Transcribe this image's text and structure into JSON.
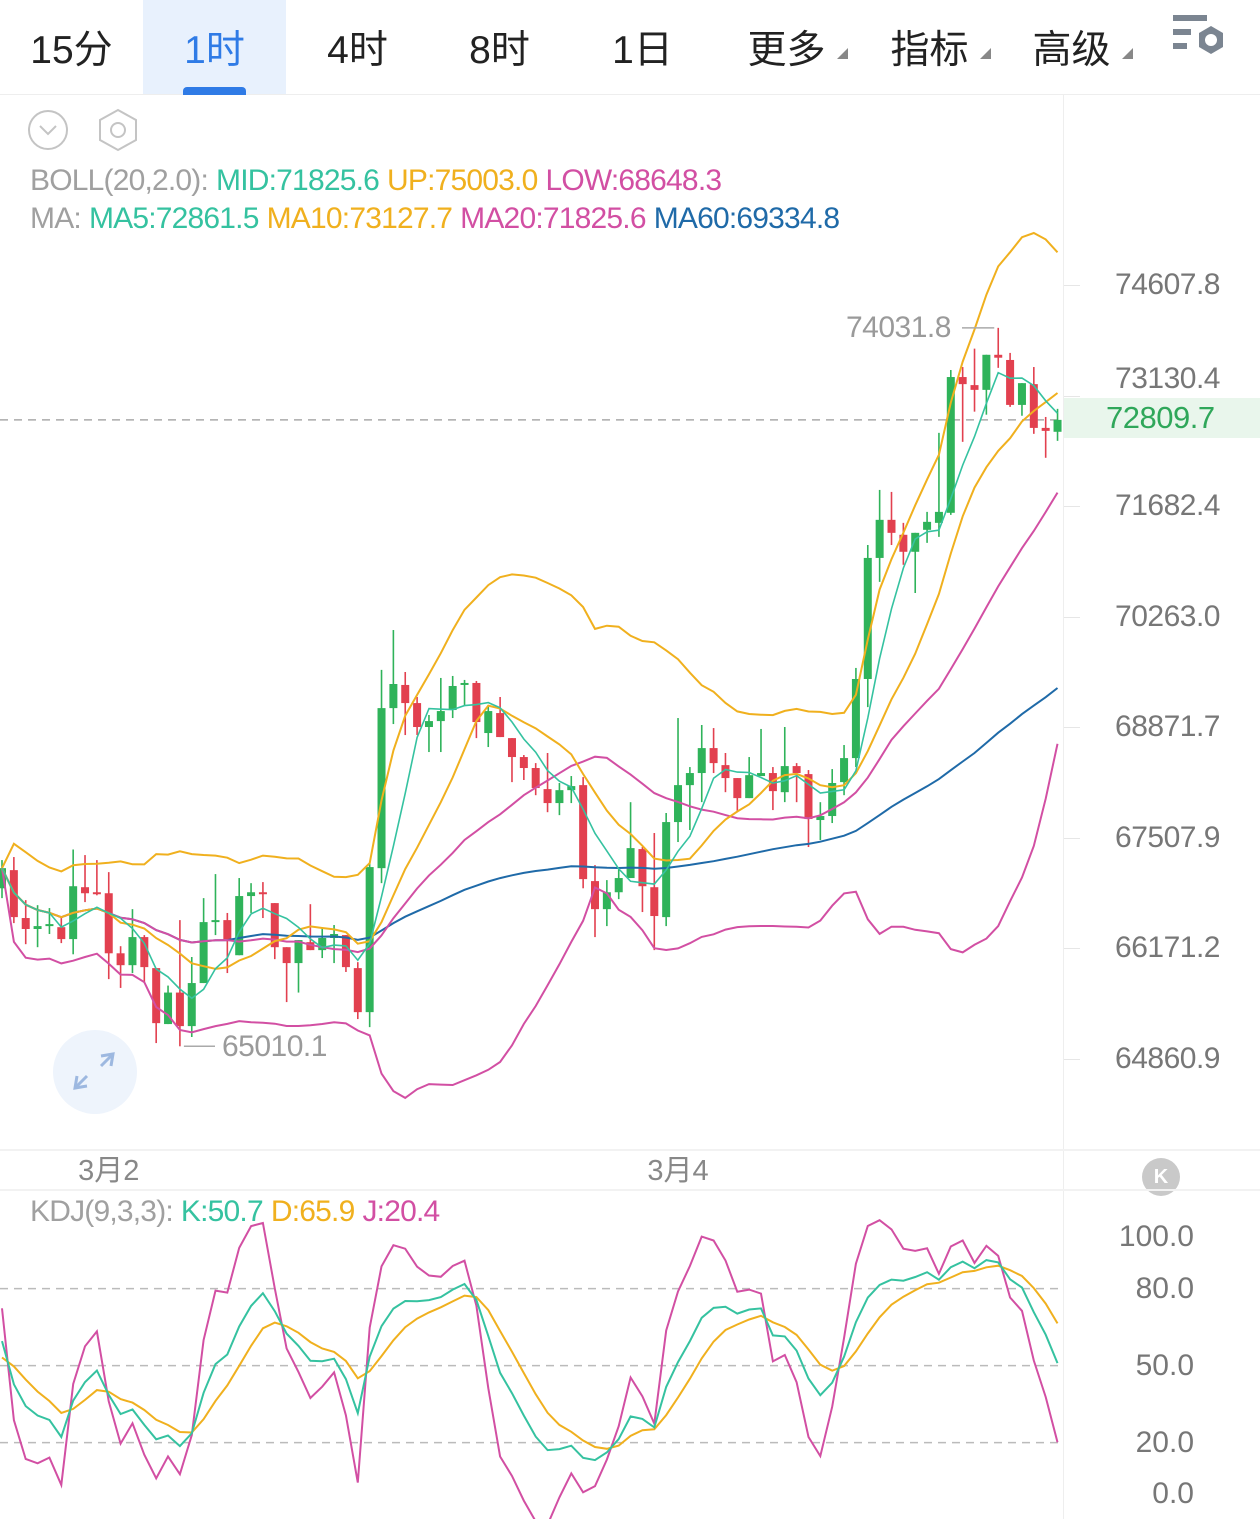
{
  "tabs": [
    {
      "label": "15分",
      "active": false,
      "dropdown": false
    },
    {
      "label": "1时",
      "active": true,
      "dropdown": false
    },
    {
      "label": "4时",
      "active": false,
      "dropdown": false
    },
    {
      "label": "8时",
      "active": false,
      "dropdown": false
    },
    {
      "label": "1日",
      "active": false,
      "dropdown": false
    },
    {
      "label": "更多",
      "active": false,
      "dropdown": true
    },
    {
      "label": "指标",
      "active": false,
      "dropdown": true
    },
    {
      "label": "高级",
      "active": false,
      "dropdown": true
    }
  ],
  "toolbar_icons": [
    "chart-settings-icon",
    "collapse-chevron-icon",
    "hexagon-settings-icon",
    "expand-arrows-icon"
  ],
  "legend": {
    "boll": {
      "label": "BOLL(20,2.0):",
      "mid": "MID:71825.6",
      "up": "UP:75003.0",
      "low": "LOW:68648.3"
    },
    "ma": {
      "label": "MA:",
      "ma5": "MA5:72861.5",
      "ma10": "MA10:73127.7",
      "ma20": "MA20:71825.6",
      "ma60": "MA60:69334.8"
    }
  },
  "kdj_legend": {
    "label": "KDJ(9,3,3):",
    "k": "K:50.7",
    "d": "D:65.9",
    "j": "J:20.4"
  },
  "k_button": "K",
  "current_price": "72809.7",
  "colors": {
    "up": "#2fb35a",
    "down": "#e2404f",
    "accent": "#2f7be6",
    "ma5": "#35c2a0",
    "ma10": "#f0b01e",
    "ma20": "#d24fa3",
    "ma60": "#1f6aa8",
    "boll_up": "#f0b01e",
    "boll_low": "#d24fa3",
    "k": "#35c2a0",
    "d": "#f0b01e",
    "j": "#d24fa3"
  },
  "chart_data": [
    {
      "type": "candlestick",
      "interval": "1时",
      "y_scale": "log",
      "y_ticks": [
        "74607.8",
        "73130.4",
        "71682.4",
        "70263.0",
        "68871.7",
        "67507.9",
        "66171.2",
        "64860.9"
      ],
      "x_ticks": [
        {
          "label": "3月2",
          "index": 9
        },
        {
          "label": "3月4",
          "index": 57
        }
      ],
      "high_marker": "74031.8",
      "low_marker": "65010.1",
      "current_price": 72809.7,
      "indicators": {
        "ma": [
          5,
          10,
          20,
          60
        ],
        "boll": [
          20,
          2.0
        ]
      },
      "candles_ohlc": [
        [
          66895,
          67237,
          66776,
          67139
        ],
        [
          67115,
          67274,
          66475,
          66547
        ],
        [
          66536,
          66752,
          66222,
          66404
        ],
        [
          66404,
          66691,
          66186,
          66439
        ],
        [
          66439,
          66656,
          66344,
          66463
        ],
        [
          66426,
          66536,
          66235,
          66283
        ],
        [
          66283,
          67366,
          66101,
          66920
        ],
        [
          66908,
          67298,
          66728,
          66835
        ],
        [
          66847,
          67237,
          66810,
          66823
        ],
        [
          66835,
          67091,
          65805,
          66113
        ],
        [
          66113,
          66198,
          65700,
          65971
        ],
        [
          65971,
          66643,
          65877,
          66307
        ],
        [
          66307,
          66331,
          65772,
          65948
        ],
        [
          65936,
          65936,
          65048,
          65283
        ],
        [
          65272,
          65728,
          65272,
          65645
        ],
        [
          65645,
          66511,
          65010.1,
          65248
        ],
        [
          65248,
          66068,
          65120,
          65758
        ],
        [
          65758,
          66776,
          65758,
          66487
        ],
        [
          66487,
          67067,
          66331,
          66511
        ],
        [
          66511,
          66597,
          65877,
          66283
        ],
        [
          66090,
          67019,
          66090,
          66801
        ],
        [
          66801,
          66957,
          66597,
          66847
        ],
        [
          66847,
          66970,
          66536,
          66823
        ],
        [
          66716,
          66716,
          66043,
          66186
        ],
        [
          66186,
          66186,
          65532,
          65996
        ],
        [
          65996,
          66271,
          65645,
          66271
        ],
        [
          66246,
          66703,
          66151,
          66151
        ],
        [
          66151,
          66416,
          66056,
          66296
        ],
        [
          66296,
          66452,
          65996,
          66344
        ],
        [
          66331,
          66331,
          65890,
          65948
        ],
        [
          65936,
          66007,
          65331,
          65413
        ],
        [
          65413,
          67200,
          65236,
          67152
        ],
        [
          67139,
          69590,
          66957,
          69111
        ],
        [
          69111,
          70094,
          68912,
          69413
        ],
        [
          69401,
          69564,
          68775,
          69174
        ],
        [
          69174,
          69250,
          68775,
          68875
        ],
        [
          68875,
          69025,
          68564,
          68949
        ],
        [
          68949,
          69489,
          68564,
          69074
        ],
        [
          69087,
          69514,
          68987,
          69388
        ],
        [
          69401,
          69464,
          69136,
          69426
        ],
        [
          69426,
          69451,
          68737,
          68937
        ],
        [
          68800,
          69149,
          68626,
          69074
        ],
        [
          69049,
          69250,
          68750,
          68750
        ],
        [
          68737,
          68737,
          68192,
          68502
        ],
        [
          68502,
          68527,
          68218,
          68366
        ],
        [
          68366,
          68427,
          68031,
          68119
        ],
        [
          68106,
          68552,
          67822,
          67934
        ],
        [
          67934,
          68181,
          67786,
          68093
        ],
        [
          68093,
          68267,
          67934,
          68143
        ],
        [
          68155,
          68254,
          66895,
          67006
        ],
        [
          66982,
          67176,
          66307,
          66643
        ],
        [
          66643,
          66994,
          66439,
          66847
        ],
        [
          66847,
          67139,
          66764,
          67019
        ],
        [
          67019,
          67945,
          67019,
          67383
        ],
        [
          67371,
          67396,
          66608,
          66920
        ],
        [
          66908,
          67567,
          66151,
          66560
        ],
        [
          66547,
          67812,
          66439,
          67701
        ],
        [
          67701,
          68987,
          67457,
          68155
        ],
        [
          68155,
          68378,
          67604,
          68304
        ],
        [
          68304,
          68900,
          67945,
          68613
        ],
        [
          68613,
          68862,
          68304,
          68427
        ],
        [
          68402,
          68552,
          68068,
          68242
        ],
        [
          68242,
          68242,
          67822,
          67995
        ],
        [
          67995,
          68502,
          67995,
          68278
        ],
        [
          68267,
          68851,
          68267,
          68304
        ],
        [
          68304,
          68378,
          67848,
          68081
        ],
        [
          68068,
          68875,
          67945,
          68390
        ],
        [
          68390,
          68427,
          67945,
          68304
        ],
        [
          68291,
          68341,
          67396,
          67738
        ],
        [
          67726,
          67945,
          67481,
          67775
        ],
        [
          67775,
          68353,
          67689,
          68181
        ],
        [
          68192,
          68651,
          68031,
          68489
        ],
        [
          68489,
          69615,
          68378,
          69476
        ],
        [
          69476,
          71180,
          69124,
          71014
        ],
        [
          71014,
          71893,
          70707,
          71505
        ],
        [
          71505,
          71867,
          71180,
          71337
        ],
        [
          71312,
          71466,
          70926,
          71093
        ],
        [
          71093,
          71337,
          70565,
          71337
        ],
        [
          71376,
          71608,
          71208,
          71479
        ],
        [
          71466,
          72639,
          71285,
          71608
        ],
        [
          71596,
          73470,
          71570,
          73376
        ],
        [
          73376,
          73509,
          72521,
          73282
        ],
        [
          73269,
          73754,
          72918,
          73206
        ],
        [
          73206,
          73672,
          72878,
          73672
        ],
        [
          73672,
          74031.8,
          73498,
          73633
        ],
        [
          73603,
          73697,
          72981,
          73007
        ],
        [
          73007,
          73295,
          72864,
          73295
        ],
        [
          73282,
          73509,
          72626,
          72704
        ],
        [
          72704,
          72848,
          72312,
          72665
        ],
        [
          72653,
          72955,
          72534,
          72809.7
        ]
      ]
    },
    {
      "type": "line",
      "indicator": "KDJ",
      "params": [
        9,
        3,
        3
      ],
      "ylim": [
        0,
        100
      ],
      "y_ticks": [
        "100.0",
        "80.0",
        "50.0",
        "20.0",
        "0.0"
      ],
      "reference_lines": [
        80,
        50,
        20
      ],
      "series": [
        {
          "name": "K"
        },
        {
          "name": "D"
        },
        {
          "name": "J"
        }
      ]
    }
  ]
}
